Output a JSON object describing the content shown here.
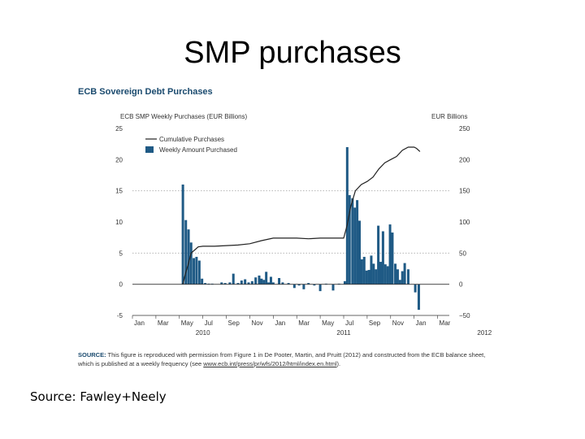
{
  "slide": {
    "title": "SMP purchases",
    "footer": "Source:  Fawley+Neely"
  },
  "source_note": {
    "label": "SOURCE:",
    "text_1": " This figure is reproduced with permission from Figure 1 in De Pooter, Martin, and Pruitt (2012) and constructed from the ECB balance sheet, which is published at a weekly frequency (see ",
    "link": "www.ecb.int/press/pr/wfs/2012/html/index.en.html",
    "text_2": ")."
  },
  "colors": {
    "bar": "#1f5a85",
    "line": "#222222",
    "grid": "#aaaaaa",
    "title": "#1a4a6e"
  },
  "chart_data": {
    "type": "bar",
    "title": "ECB Sovereign Debt Purchases",
    "ylabel": "ECB SMP Weekly Purchases (EUR Billions)",
    "y2label": "EUR Billions",
    "ylim": [
      -5,
      25
    ],
    "y2lim": [
      -50,
      250
    ],
    "yticks": [
      "25",
      "20",
      "15",
      "10",
      "5",
      "0",
      "-5"
    ],
    "y2ticks": [
      "250",
      "200",
      "150",
      "100",
      "50",
      "0",
      "−50"
    ],
    "x_tick_labels": [
      "Jan",
      "Mar",
      "May",
      "Jul",
      "Sep",
      "Nov",
      "Jan",
      "Mar",
      "May",
      "Jul",
      "Sep",
      "Nov",
      "Jan",
      "Mar"
    ],
    "x_year_labels": [
      {
        "label": "2010",
        "month_index": 6
      },
      {
        "label": "2011",
        "month_index": 18
      },
      {
        "label": "2012",
        "month_index": 30
      }
    ],
    "grid": "dotted horizontal at 15 and 5",
    "legend_position": "top-left",
    "series": [
      {
        "name": "Weekly Amount Purchased",
        "type": "bar",
        "x": [
          4.3,
          4.55,
          4.78,
          5.0,
          5.23,
          5.46,
          5.7,
          5.93,
          6.2,
          6.5,
          6.8,
          7.6,
          7.9,
          8.3,
          8.6,
          9.0,
          9.3,
          9.6,
          9.9,
          10.2,
          10.5,
          10.8,
          11.0,
          11.2,
          11.4,
          11.6,
          11.8,
          12.0,
          12.5,
          12.8,
          13.3,
          13.8,
          14.2,
          14.6,
          15.0,
          15.5,
          16.0,
          16.5,
          17.1,
          17.6,
          18.1,
          18.3,
          18.5,
          18.75,
          18.95,
          19.15,
          19.35,
          19.55,
          19.75,
          19.95,
          20.15,
          20.35,
          20.55,
          20.75,
          20.95,
          21.15,
          21.35,
          21.55,
          21.75,
          21.95,
          22.15,
          22.4,
          22.6,
          22.8,
          23.0,
          23.2,
          23.5,
          24.1,
          24.4
        ],
        "values": [
          16.0,
          10.3,
          8.8,
          6.7,
          4.2,
          4.4,
          3.8,
          0.9,
          0.2,
          0.1,
          0.1,
          0.3,
          0.2,
          0.3,
          1.7,
          0.2,
          0.6,
          0.8,
          0.3,
          0.5,
          1.1,
          1.4,
          0.9,
          0.7,
          2.0,
          0.3,
          1.2,
          0.3,
          1.0,
          0.3,
          0.2,
          -0.6,
          -0.2,
          -0.8,
          0.2,
          -0.2,
          -1.1,
          0.1,
          -1.0,
          0.1,
          0.5,
          22.0,
          14.3,
          13.8,
          12.3,
          13.5,
          10.2,
          4.0,
          4.4,
          2.2,
          2.3,
          4.6,
          3.3,
          2.4,
          9.4,
          3.6,
          8.5,
          3.2,
          2.9,
          9.6,
          8.3,
          3.3,
          2.4,
          0.7,
          2.1,
          3.4,
          2.4,
          -1.3,
          -4.1
        ]
      },
      {
        "name": "Cumulative Purchases",
        "type": "line",
        "axis": "right",
        "x": [
          4.3,
          4.5,
          4.8,
          5.0,
          5.3,
          5.6,
          6.0,
          7.0,
          8.0,
          9.0,
          10.0,
          11.0,
          12.0,
          13.0,
          14.0,
          15.0,
          16.0,
          17.0,
          18.0,
          18.3,
          18.6,
          19.0,
          19.5,
          20.0,
          20.5,
          21.0,
          21.5,
          22.0,
          22.5,
          23.0,
          23.5,
          24.0,
          24.2,
          24.5
        ],
        "values": [
          0,
          16,
          35,
          50,
          55,
          60,
          61,
          61,
          62,
          63,
          65,
          70,
          74,
          74,
          74,
          73,
          74,
          74,
          74,
          95,
          125,
          150,
          160,
          165,
          172,
          185,
          195,
          200,
          205,
          215,
          220,
          220,
          218,
          213
        ]
      }
    ]
  }
}
